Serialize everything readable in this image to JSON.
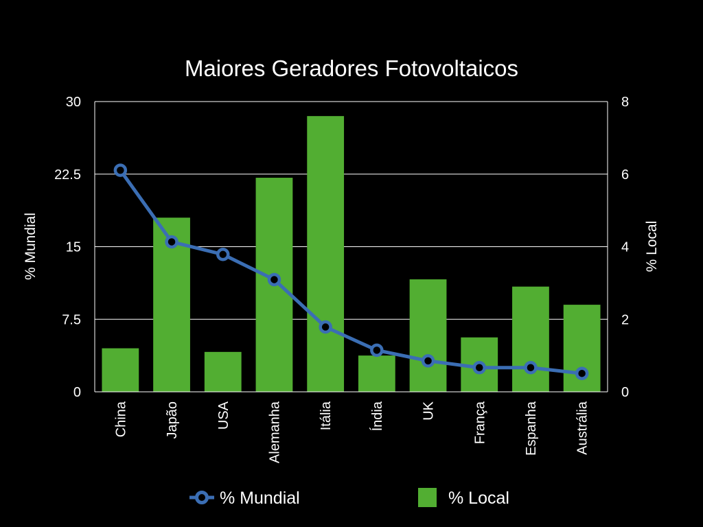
{
  "chart_data": {
    "type": "bar",
    "title": "Maiores Geradores Fotovoltaicos",
    "categories": [
      "China",
      "Japão",
      "USA",
      "Alemanha",
      "Itália",
      "Índia",
      "UK",
      "França",
      "Espanha",
      "Austrália"
    ],
    "series": [
      {
        "name": "% Local",
        "type": "bar",
        "axis": "right",
        "color": "#52ae32",
        "values": [
          1.2,
          4.8,
          1.1,
          5.9,
          7.6,
          1.0,
          3.1,
          1.5,
          2.9,
          2.4
        ]
      },
      {
        "name": "% Mundial",
        "type": "line",
        "axis": "left",
        "color": "#3b6eb4",
        "values": [
          22.9,
          15.5,
          14.2,
          11.6,
          6.7,
          4.3,
          3.2,
          2.5,
          2.5,
          1.9
        ]
      }
    ],
    "y_left": {
      "label": "% Mundial",
      "range": [
        0,
        30
      ],
      "ticks": [
        "0",
        "7.5",
        "15",
        "22.5",
        "30"
      ]
    },
    "y_right": {
      "label": "% Local",
      "range": [
        0,
        8
      ],
      "ticks": [
        "0",
        "2",
        "4",
        "6",
        "8"
      ]
    },
    "grid": true,
    "legend_position": "bottom",
    "colors": {
      "background": "#000000",
      "bar": "#52ae32",
      "line": "#3b6eb4",
      "text": "#ffffff",
      "grid": "#ffffff"
    }
  }
}
